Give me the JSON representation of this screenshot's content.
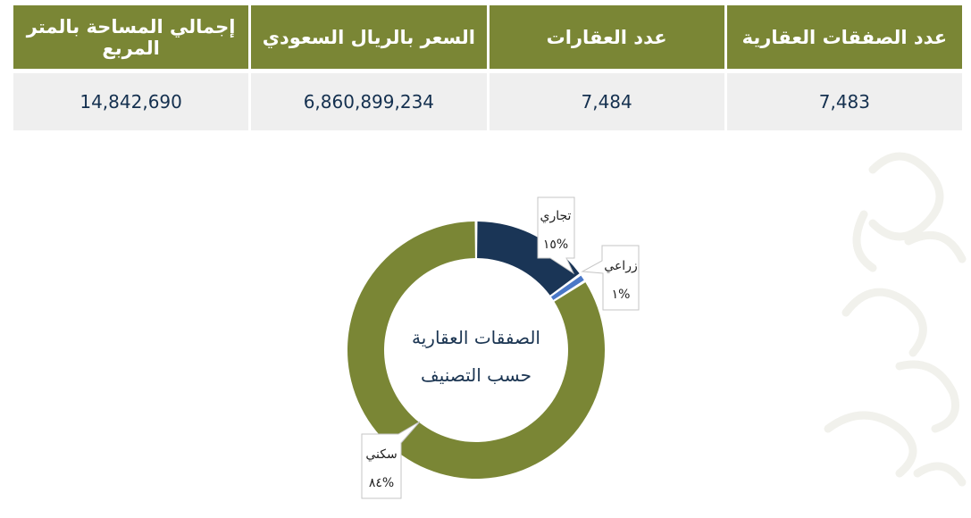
{
  "table": {
    "headers": [
      "عدد الصفقات العقارية",
      "عدد العقارات",
      "السعر بالريال السعودي",
      "إجمالي المساحة بالمتر المربع"
    ],
    "values": [
      "7,483",
      "7,484",
      "6,860,899,234",
      "14,842,690"
    ]
  },
  "chart_data": {
    "type": "pie",
    "center_label_line1": "الصفقات العقارية",
    "center_label_line2": "حسب التصنيف",
    "slices": [
      {
        "label": "تجاري",
        "percent_label": "%١٥",
        "value": 15,
        "color": "#1a3556"
      },
      {
        "label": "زراعي",
        "percent_label": "%١",
        "value": 1,
        "color": "#4a78c8"
      },
      {
        "label": "سكني",
        "percent_label": "%٨٤",
        "value": 84,
        "color": "#7a8635"
      }
    ]
  }
}
